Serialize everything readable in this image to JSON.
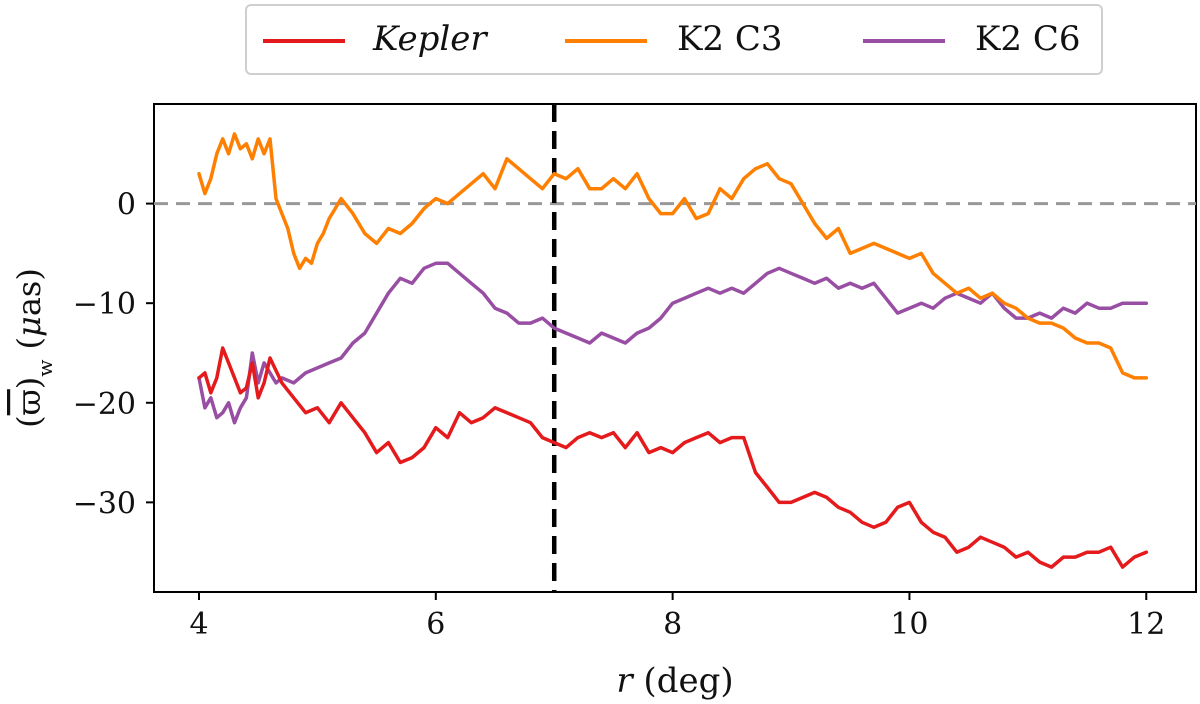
{
  "chart_data": {
    "type": "line",
    "title": "",
    "xlabel": "r (deg)",
    "ylabel": "(ϖ̄)w (μas)",
    "xlim": [
      3.62,
      12.42
    ],
    "ylim": [
      -39,
      10
    ],
    "xticks": [
      4,
      6,
      8,
      10,
      12
    ],
    "xtick_labels": [
      "4",
      "6",
      "8",
      "10",
      "12"
    ],
    "yticks": [
      0,
      -10,
      -20,
      -30
    ],
    "ytick_labels": [
      "0",
      "−10",
      "−20",
      "−30"
    ],
    "reference_lines": [
      {
        "name": "zero-line",
        "orientation": "horizontal",
        "value": 0,
        "style": "dashed",
        "color": "#999999"
      },
      {
        "name": "r-cut-line",
        "orientation": "vertical",
        "value": 7,
        "style": "dashed",
        "color": "#000000"
      }
    ],
    "legend": {
      "position": "top-center-outside"
    },
    "series": [
      {
        "name": "Kepler",
        "italic": true,
        "color": "#e41a1c",
        "x": [
          4.0,
          4.05,
          4.1,
          4.15,
          4.2,
          4.25,
          4.3,
          4.35,
          4.4,
          4.45,
          4.5,
          4.55,
          4.6,
          4.7,
          4.8,
          4.9,
          5.0,
          5.1,
          5.2,
          5.3,
          5.4,
          5.5,
          5.6,
          5.7,
          5.8,
          5.9,
          6.0,
          6.1,
          6.2,
          6.3,
          6.4,
          6.5,
          6.6,
          6.7,
          6.8,
          6.9,
          7.0,
          7.1,
          7.2,
          7.3,
          7.4,
          7.5,
          7.6,
          7.7,
          7.8,
          7.9,
          8.0,
          8.1,
          8.2,
          8.3,
          8.4,
          8.5,
          8.6,
          8.7,
          8.8,
          8.9,
          9.0,
          9.1,
          9.2,
          9.3,
          9.4,
          9.5,
          9.6,
          9.7,
          9.8,
          9.9,
          10.0,
          10.1,
          10.2,
          10.3,
          10.4,
          10.5,
          10.6,
          10.7,
          10.8,
          10.9,
          11.0,
          11.1,
          11.2,
          11.3,
          11.4,
          11.5,
          11.6,
          11.7,
          11.8,
          11.9,
          12.0
        ],
        "values": [
          -17.5,
          -17.0,
          -19.0,
          -17.5,
          -14.5,
          -16.0,
          -17.5,
          -19.0,
          -18.5,
          -16.0,
          -19.5,
          -18.0,
          -15.5,
          -18.0,
          -19.5,
          -21.0,
          -20.5,
          -22.0,
          -20.0,
          -21.5,
          -23.0,
          -25.0,
          -24.0,
          -26.0,
          -25.5,
          -24.5,
          -22.5,
          -23.5,
          -21.0,
          -22.0,
          -21.5,
          -20.5,
          -21.0,
          -21.5,
          -22.0,
          -23.5,
          -24.0,
          -24.5,
          -23.5,
          -23.0,
          -23.5,
          -23.0,
          -24.5,
          -23.0,
          -25.0,
          -24.5,
          -25.0,
          -24.0,
          -23.5,
          -23.0,
          -24.0,
          -23.5,
          -23.5,
          -27.0,
          -28.5,
          -30.0,
          -30.0,
          -29.5,
          -29.0,
          -29.5,
          -30.5,
          -31.0,
          -32.0,
          -32.5,
          -32.0,
          -30.5,
          -30.0,
          -32.0,
          -33.0,
          -33.5,
          -35.0,
          -34.5,
          -33.5,
          -34.0,
          -34.5,
          -35.5,
          -35.0,
          -36.0,
          -36.5,
          -35.5,
          -35.5,
          -35.0,
          -35.0,
          -34.5,
          -36.5,
          -35.5,
          -35.0
        ]
      },
      {
        "name": "K2 C3",
        "italic": false,
        "color": "#ff7f00",
        "x": [
          4.0,
          4.05,
          4.1,
          4.15,
          4.2,
          4.25,
          4.3,
          4.35,
          4.4,
          4.45,
          4.5,
          4.55,
          4.6,
          4.65,
          4.7,
          4.75,
          4.8,
          4.85,
          4.9,
          4.95,
          5.0,
          5.05,
          5.1,
          5.15,
          5.2,
          5.3,
          5.4,
          5.5,
          5.6,
          5.7,
          5.8,
          5.9,
          6.0,
          6.1,
          6.2,
          6.3,
          6.4,
          6.5,
          6.6,
          6.7,
          6.8,
          6.9,
          7.0,
          7.1,
          7.2,
          7.3,
          7.4,
          7.5,
          7.6,
          7.7,
          7.8,
          7.9,
          8.0,
          8.1,
          8.2,
          8.3,
          8.4,
          8.5,
          8.6,
          8.7,
          8.8,
          8.9,
          9.0,
          9.1,
          9.2,
          9.3,
          9.4,
          9.5,
          9.6,
          9.7,
          9.8,
          9.9,
          10.0,
          10.1,
          10.2,
          10.3,
          10.4,
          10.5,
          10.6,
          10.7,
          10.8,
          10.9,
          11.0,
          11.1,
          11.2,
          11.3,
          11.4,
          11.5,
          11.6,
          11.7,
          11.8,
          11.9,
          12.0
        ],
        "values": [
          3.0,
          1.0,
          2.5,
          5.0,
          6.5,
          5.0,
          7.0,
          5.5,
          6.0,
          4.5,
          6.5,
          5.0,
          6.5,
          0.5,
          -1.0,
          -2.5,
          -5.0,
          -6.5,
          -5.5,
          -6.0,
          -4.0,
          -3.0,
          -1.5,
          -0.5,
          0.5,
          -1.0,
          -3.0,
          -4.0,
          -2.5,
          -3.0,
          -2.0,
          -0.5,
          0.5,
          0.0,
          1.0,
          2.0,
          3.0,
          1.5,
          4.5,
          3.5,
          2.5,
          1.5,
          3.0,
          2.5,
          3.5,
          1.5,
          1.5,
          2.5,
          1.5,
          3.0,
          0.5,
          -1.0,
          -1.0,
          0.5,
          -1.5,
          -1.0,
          1.5,
          0.5,
          2.5,
          3.5,
          4.0,
          2.5,
          2.0,
          0.0,
          -2.0,
          -3.5,
          -2.5,
          -5.0,
          -4.5,
          -4.0,
          -4.5,
          -5.0,
          -5.5,
          -5.0,
          -7.0,
          -8.0,
          -9.0,
          -8.5,
          -9.5,
          -9.0,
          -10.0,
          -10.5,
          -11.5,
          -12.0,
          -12.0,
          -12.5,
          -13.5,
          -14.0,
          -14.0,
          -14.5,
          -17.0,
          -17.5,
          -17.5
        ]
      },
      {
        "name": "K2 C6",
        "italic": false,
        "color": "#984ea3",
        "x": [
          4.0,
          4.05,
          4.1,
          4.15,
          4.2,
          4.25,
          4.3,
          4.35,
          4.4,
          4.45,
          4.5,
          4.55,
          4.6,
          4.65,
          4.7,
          4.8,
          4.9,
          5.0,
          5.1,
          5.2,
          5.3,
          5.4,
          5.5,
          5.6,
          5.7,
          5.8,
          5.9,
          6.0,
          6.1,
          6.2,
          6.3,
          6.4,
          6.5,
          6.6,
          6.7,
          6.8,
          6.9,
          7.0,
          7.1,
          7.2,
          7.3,
          7.4,
          7.5,
          7.6,
          7.7,
          7.8,
          7.9,
          8.0,
          8.1,
          8.2,
          8.3,
          8.4,
          8.5,
          8.6,
          8.7,
          8.8,
          8.9,
          9.0,
          9.1,
          9.2,
          9.3,
          9.4,
          9.5,
          9.6,
          9.7,
          9.8,
          9.9,
          10.0,
          10.1,
          10.2,
          10.3,
          10.4,
          10.5,
          10.6,
          10.7,
          10.8,
          10.9,
          11.0,
          11.1,
          11.2,
          11.3,
          11.4,
          11.5,
          11.6,
          11.7,
          11.8,
          11.9,
          12.0
        ],
        "values": [
          -17.5,
          -20.5,
          -19.5,
          -21.5,
          -21.0,
          -20.0,
          -22.0,
          -20.5,
          -19.5,
          -15.0,
          -18.0,
          -16.0,
          -17.0,
          -18.0,
          -17.5,
          -18.0,
          -17.0,
          -16.5,
          -16.0,
          -15.5,
          -14.0,
          -13.0,
          -11.0,
          -9.0,
          -7.5,
          -8.0,
          -6.5,
          -6.0,
          -6.0,
          -7.0,
          -8.0,
          -9.0,
          -10.5,
          -11.0,
          -12.0,
          -12.0,
          -11.5,
          -12.5,
          -13.0,
          -13.5,
          -14.0,
          -13.0,
          -13.5,
          -14.0,
          -13.0,
          -12.5,
          -11.5,
          -10.0,
          -9.5,
          -9.0,
          -8.5,
          -9.0,
          -8.5,
          -9.0,
          -8.0,
          -7.0,
          -6.5,
          -7.0,
          -7.5,
          -8.0,
          -7.5,
          -8.5,
          -8.0,
          -8.5,
          -8.0,
          -9.5,
          -11.0,
          -10.5,
          -10.0,
          -10.5,
          -9.5,
          -9.0,
          -9.5,
          -10.0,
          -9.0,
          -10.5,
          -11.5,
          -11.5,
          -11.0,
          -11.5,
          -10.5,
          -11.0,
          -10.0,
          -10.5,
          -10.5,
          -10.0,
          -10.0,
          -10.0
        ]
      }
    ]
  }
}
